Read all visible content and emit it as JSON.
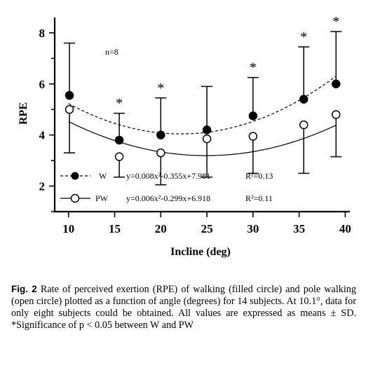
{
  "chart_data": {
    "type": "scatter",
    "xlabel": "Incline (deg)",
    "ylabel": "RPE",
    "xlim": [
      8.5,
      40.5
    ],
    "ylim": [
      1.0,
      8.6
    ],
    "xticks": [
      10,
      15,
      20,
      25,
      30,
      35,
      40
    ],
    "yticks": [
      2,
      4,
      6,
      8
    ],
    "note": "n=8",
    "series": [
      {
        "name": "W",
        "marker": "filled-circle",
        "line_style": "dashed",
        "equation": "y=0.008x²-0.355x+7.981",
        "r2": "R²=0.13",
        "fit": [
          0.008,
          -0.355,
          7.981
        ],
        "x": [
          10.1,
          15.5,
          20,
          25,
          30,
          35.5,
          39
        ],
        "y": [
          5.55,
          3.8,
          4.0,
          4.2,
          4.75,
          5.4,
          6.0
        ],
        "sd": [
          2.05,
          1.05,
          1.45,
          1.7,
          1.5,
          2.05,
          2.05
        ]
      },
      {
        "name": "PW",
        "marker": "open-circle",
        "line_style": "solid",
        "equation": "y=0.006x²-0.299x+6.918",
        "r2": "R²=0.11",
        "fit": [
          0.006,
          -0.299,
          6.918
        ],
        "x": [
          10.1,
          15.5,
          20,
          25,
          30,
          35.5,
          39
        ],
        "y": [
          5.0,
          3.15,
          3.3,
          3.85,
          3.95,
          4.4,
          4.8
        ],
        "sd": [
          1.7,
          0.8,
          1.25,
          1.5,
          1.45,
          1.9,
          1.65
        ]
      }
    ],
    "significance_marker": "*",
    "significant_x": [
      15.5,
      20,
      30,
      35.5,
      39
    ]
  },
  "caption": {
    "label": "Fig. 2",
    "text": "Rate of perceived exertion (RPE) of walking (filled circle) and pole walking (open circle) plotted as a function of angle (degrees) for 14 subjects. At 10.1°, data for only eight subjects could be obtained. All values are expressed as means ± SD. *Significance of p < 0.05 between W and PW"
  },
  "colors": {
    "ink": "#000000",
    "background": "#ffffff"
  }
}
